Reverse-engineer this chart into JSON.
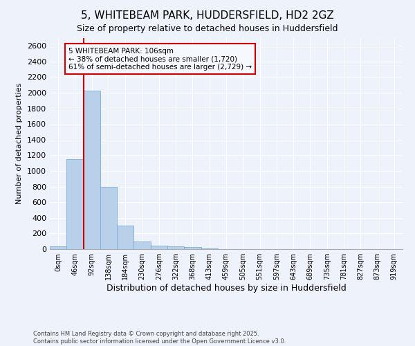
{
  "title1": "5, WHITEBEAM PARK, HUDDERSFIELD, HD2 2GZ",
  "title2": "Size of property relative to detached houses in Huddersfield",
  "xlabel": "Distribution of detached houses by size in Huddersfield",
  "ylabel": "Number of detached properties",
  "bar_color": "#b8d0ea",
  "bar_edge_color": "#7aadd4",
  "categories": [
    "0sqm",
    "46sqm",
    "92sqm",
    "138sqm",
    "184sqm",
    "230sqm",
    "276sqm",
    "322sqm",
    "368sqm",
    "413sqm",
    "459sqm",
    "505sqm",
    "551sqm",
    "597sqm",
    "643sqm",
    "689sqm",
    "735sqm",
    "781sqm",
    "827sqm",
    "873sqm",
    "919sqm"
  ],
  "values": [
    35,
    1150,
    2030,
    800,
    305,
    100,
    45,
    35,
    25,
    5,
    0,
    0,
    0,
    0,
    0,
    0,
    0,
    0,
    0,
    0,
    0
  ],
  "ylim": [
    0,
    2700
  ],
  "yticks": [
    0,
    200,
    400,
    600,
    800,
    1000,
    1200,
    1400,
    1600,
    1800,
    2000,
    2200,
    2400,
    2600
  ],
  "vline_color": "#cc0000",
  "vline_x_index": 2,
  "annotation_text": "5 WHITEBEAM PARK: 106sqm\n← 38% of detached houses are smaller (1,720)\n61% of semi-detached houses are larger (2,729) →",
  "annotation_box_color": "#cc0000",
  "annotation_bg": "#f5f8ff",
  "footnote1": "Contains HM Land Registry data © Crown copyright and database right 2025.",
  "footnote2": "Contains public sector information licensed under the Open Government Licence v3.0.",
  "background_color": "#eef2fa",
  "grid_color": "#ffffff",
  "title_fontsize": 11,
  "subtitle_fontsize": 9
}
